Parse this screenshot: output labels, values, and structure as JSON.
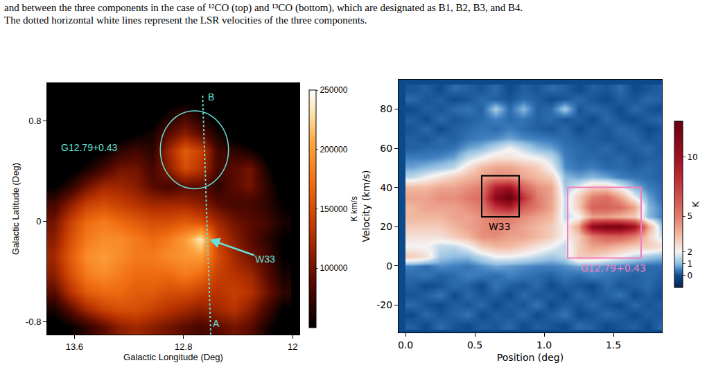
{
  "caption": {
    "lines": [
      "and between the three components in the case of ¹²CO (top) and ¹³CO (bottom), which are designated as B1, B2, B3, and B4.",
      "The dotted horizontal white lines represent the LSR velocities of the three components."
    ]
  },
  "chart_data": [
    {
      "type": "heatmap",
      "x_label": "Galactic Longitude (Deg)",
      "y_label": "Galactic Latitude (Deg)",
      "x": [
        13.75,
        13.63,
        13.51,
        13.39,
        13.27,
        13.15,
        13.03,
        12.91,
        12.79,
        12.67,
        12.55,
        12.43,
        12.31,
        12.19,
        12.07
      ],
      "y": [
        -0.84,
        -0.7,
        -0.56,
        -0.42,
        -0.28,
        -0.14,
        0,
        0.14,
        0.28,
        0.42,
        0.56,
        0.7,
        0.84,
        0.98
      ],
      "cells": [
        [
          40000,
          50000,
          70000,
          90000,
          110000,
          120000,
          110000,
          100000,
          90000,
          80000,
          90000,
          100000,
          90000,
          60000,
          40000
        ],
        [
          60000,
          90000,
          120000,
          140000,
          150000,
          150000,
          140000,
          130000,
          120000,
          110000,
          120000,
          130000,
          110000,
          80000,
          50000
        ],
        [
          90000,
          130000,
          160000,
          170000,
          170000,
          160000,
          160000,
          150000,
          150000,
          140000,
          130000,
          140000,
          130000,
          100000,
          70000
        ],
        [
          110000,
          150000,
          180000,
          190000,
          180000,
          170000,
          170000,
          170000,
          180000,
          170000,
          140000,
          130000,
          120000,
          90000,
          60000
        ],
        [
          120000,
          160000,
          190000,
          200000,
          190000,
          180000,
          180000,
          190000,
          195000,
          200000,
          150000,
          120000,
          100000,
          80000,
          50000
        ],
        [
          110000,
          150000,
          180000,
          190000,
          190000,
          180000,
          170000,
          180000,
          200000,
          235000,
          140000,
          110000,
          90000,
          70000,
          50000
        ],
        [
          100000,
          140000,
          170000,
          180000,
          170000,
          160000,
          150000,
          150000,
          160000,
          150000,
          120000,
          100000,
          90000,
          80000,
          60000
        ],
        [
          80000,
          110000,
          140000,
          150000,
          140000,
          130000,
          120000,
          120000,
          120000,
          110000,
          90000,
          80000,
          80000,
          70000,
          50000
        ],
        [
          50000,
          70000,
          100000,
          120000,
          120000,
          110000,
          90000,
          80000,
          90000,
          90000,
          70000,
          90000,
          100000,
          70000,
          40000
        ],
        [
          30000,
          40000,
          60000,
          80000,
          100000,
          100000,
          80000,
          110000,
          150000,
          130000,
          80000,
          90000,
          100000,
          60000,
          30000
        ],
        [
          20000,
          30000,
          40000,
          50000,
          70000,
          80000,
          70000,
          120000,
          160000,
          140000,
          80000,
          70000,
          60000,
          40000,
          20000
        ],
        [
          20000,
          20000,
          30000,
          30000,
          40000,
          50000,
          60000,
          90000,
          110000,
          90000,
          60000,
          40000,
          30000,
          20000,
          20000
        ],
        [
          20000,
          20000,
          20000,
          20000,
          30000,
          30000,
          40000,
          60000,
          80000,
          60000,
          40000,
          30000,
          20000,
          20000,
          20000
        ],
        [
          20000,
          20000,
          20000,
          20000,
          20000,
          20000,
          30000,
          40000,
          40000,
          30000,
          30000,
          20000,
          20000,
          20000,
          20000
        ]
      ],
      "xlim": [
        13.8,
        11.95
      ],
      "xticks": [
        13.6,
        12.8,
        12
      ],
      "ylim": [
        -0.9,
        1.1
      ],
      "yticks": [
        0.8,
        0,
        -0.8
      ],
      "colorbar": {
        "zlim": [
          50000,
          250000
        ],
        "zticks": [
          100000,
          150000,
          200000,
          250000
        ],
        "title": "K km/s"
      },
      "annotations": [
        {
          "text": "G12.79+0.43",
          "x": 13.49,
          "y": 0.59,
          "color": "#66e0d8"
        },
        {
          "text": "B",
          "x": 12.6,
          "y": 0.99,
          "color": "#66e0d8"
        },
        {
          "text": "A",
          "x": 12.56,
          "y": -0.81,
          "color": "#66e0d8"
        },
        {
          "text": "W33",
          "x": 12.62,
          "y": -0.14,
          "text_x": 12.2,
          "text_y": -0.3,
          "color": "#66e0d8"
        }
      ],
      "circle": {
        "x": [
          12.97,
          12.47
        ],
        "y": [
          0.26,
          0.88
        ],
        "color": "#66e0d8"
      },
      "dotted_line": {
        "x": [
          12.6,
          12.66
        ],
        "y": [
          -0.9,
          1.0
        ],
        "color": "#66e0d8",
        "line_style": "dot"
      }
    },
    {
      "type": "heatmap",
      "x_label": "Position (deg)",
      "y_label": "Velocity (km/s)",
      "x": [
        0.05,
        0.15,
        0.25,
        0.35,
        0.45,
        0.55,
        0.65,
        0.75,
        0.85,
        0.95,
        1.05,
        1.15,
        1.25,
        1.35,
        1.45,
        1.55,
        1.65,
        1.75,
        1.85
      ],
      "y": [
        -30,
        -25,
        -20,
        -15,
        -10,
        -5,
        0,
        5,
        10,
        15,
        20,
        25,
        30,
        35,
        40,
        45,
        50,
        55,
        60,
        65,
        70,
        75,
        80,
        85,
        90
      ],
      "cells": [
        [
          0.2,
          0,
          0.3,
          0.1,
          0,
          0.2,
          0.1,
          0.3,
          0,
          0.2,
          0.1,
          0,
          0.3,
          0.2,
          0,
          0.1,
          0.2,
          0,
          0.3
        ],
        [
          0,
          0.3,
          0.1,
          0.2,
          0.4,
          0,
          0.2,
          0.1,
          0.3,
          0,
          0.2,
          0.4,
          0,
          0.1,
          0.3,
          0.2,
          0,
          0.2,
          0.1
        ],
        [
          0.3,
          0.1,
          0,
          0.2,
          0.1,
          0.3,
          0,
          0.2,
          0.1,
          0.4,
          0,
          0.2,
          0.1,
          0.3,
          0.1,
          0,
          0.3,
          0.1,
          0.2
        ],
        [
          0.1,
          0.2,
          0.4,
          0,
          0.3,
          0.1,
          0.2,
          0,
          0.3,
          0.1,
          0.2,
          0,
          0.3,
          0.1,
          0.2,
          0.4,
          0,
          0.2,
          0
        ],
        [
          0.2,
          0,
          0.1,
          0.3,
          0.2,
          0,
          0.4,
          0.2,
          0.1,
          0.3,
          0,
          0.2,
          0.1,
          0,
          0.3,
          0.1,
          0.2,
          0.3,
          0.1
        ],
        [
          0.3,
          0.4,
          0.2,
          0.3,
          0.5,
          0.4,
          0.3,
          0.5,
          0.4,
          0.3,
          0.2,
          0.4,
          0.3,
          0.5,
          0.4,
          0.3,
          0.2,
          0.3,
          0.2
        ],
        [
          0.5,
          0.3,
          0.6,
          0.5,
          0.4,
          0.6,
          0.8,
          0.7,
          0.6,
          0.5,
          0.5,
          0.6,
          0.8,
          0.7,
          0.6,
          0.5,
          0.4,
          0.3,
          0.3
        ],
        [
          3,
          2.5,
          1.2,
          1,
          1,
          1.5,
          2,
          2,
          1.8,
          1.5,
          1.2,
          1.5,
          3,
          3,
          2.5,
          2,
          1.5,
          1.2,
          1
        ],
        [
          2,
          2,
          1.5,
          1.5,
          2,
          3,
          3.5,
          3.5,
          3,
          2.5,
          2,
          1.5,
          3,
          4,
          4,
          3.5,
          3,
          3,
          2.5
        ],
        [
          2.5,
          2.5,
          2.5,
          3,
          3.5,
          4.5,
          4.5,
          4,
          4,
          3.5,
          3,
          2,
          3,
          5,
          6,
          6,
          5,
          3,
          1.5
        ],
        [
          3,
          3,
          3,
          3.5,
          4,
          4.5,
          5,
          4.5,
          4,
          3.5,
          3,
          2,
          4,
          11,
          12,
          12,
          10,
          4,
          1
        ],
        [
          3.5,
          3.5,
          3.5,
          4,
          4,
          4.5,
          5,
          5,
          4.5,
          4,
          3.5,
          1.5,
          2,
          4,
          4,
          3.5,
          3,
          1,
          0.5
        ],
        [
          3.5,
          4,
          4,
          4,
          4.5,
          5,
          8,
          9,
          6,
          5,
          4,
          1.5,
          3,
          6,
          6,
          5.5,
          4,
          1,
          0.5
        ],
        [
          4,
          4,
          4.5,
          4.5,
          5,
          5.5,
          11,
          13,
          8,
          5,
          4,
          1.5,
          3,
          5,
          5.5,
          4,
          2,
          0.8,
          0.3
        ],
        [
          3.5,
          3.5,
          4,
          4,
          4.5,
          5,
          9,
          10,
          6,
          4.5,
          4,
          1.2,
          2,
          3,
          3,
          2,
          1,
          0.5,
          0.3
        ],
        [
          1.5,
          2,
          2.5,
          3,
          3.5,
          4,
          4.5,
          4.5,
          4,
          3.5,
          3,
          1,
          0.8,
          1,
          0.8,
          0.5,
          0.4,
          0.3,
          0.2
        ],
        [
          0.8,
          1,
          1.2,
          1.5,
          2.5,
          3.5,
          4,
          4,
          3.5,
          3,
          2,
          0.6,
          0.4,
          0.5,
          0.3,
          0.3,
          0.2,
          0.3,
          0.2
        ],
        [
          0.5,
          0.5,
          0.6,
          0.8,
          1.5,
          2,
          2.5,
          2.5,
          2.2,
          2,
          1.5,
          0.5,
          0.3,
          0.3,
          0.2,
          0.3,
          0.1,
          0.2,
          0.2
        ],
        [
          0.2,
          0.3,
          0.3,
          0.4,
          0.8,
          1,
          1.5,
          2,
          1.5,
          1,
          0.8,
          0.4,
          0.3,
          0.2,
          0.3,
          0.1,
          0.2,
          0.3,
          0.1
        ],
        [
          0.2,
          0.1,
          0.3,
          0.2,
          0.4,
          0.5,
          0.6,
          0.8,
          0.6,
          0.5,
          0.4,
          0.3,
          0.2,
          0.2,
          0.1,
          0.2,
          0.3,
          0.1,
          0.2
        ],
        [
          0.1,
          0.3,
          0,
          0.2,
          0.3,
          0.4,
          0.3,
          0.5,
          0.3,
          0.2,
          0.1,
          0.3,
          0,
          0.2,
          0.1,
          0.3,
          0.2,
          0,
          0.1
        ],
        [
          0.2,
          0,
          0.3,
          0.1,
          0.2,
          0.3,
          0.5,
          0.3,
          0.4,
          0.2,
          0.3,
          0.1,
          0.2,
          0,
          0.3,
          0.1,
          0,
          0.2,
          0.3
        ],
        [
          0,
          0.2,
          0.1,
          0.3,
          0.4,
          0.2,
          1.2,
          0.3,
          1,
          0.2,
          0.3,
          1.2,
          0.1,
          0.3,
          0.2,
          0,
          0.3,
          0.1,
          0
        ],
        [
          0.3,
          0.1,
          0.2,
          0,
          0.1,
          0.3,
          0.2,
          0.1,
          0.3,
          0.2,
          0,
          0.1,
          0.3,
          0.1,
          0,
          0.2,
          0.1,
          0.3,
          0.2
        ],
        [
          0.1,
          0.2,
          0,
          0.3,
          0.2,
          0.1,
          0.3,
          0,
          0.2,
          0.1,
          0.3,
          0.2,
          0,
          0.2,
          0.1,
          0.3,
          0,
          0.1,
          0.2
        ]
      ],
      "xlim": [
        -0.05,
        1.85
      ],
      "xticks": [
        {
          "value": 0,
          "label": "0.0"
        },
        {
          "value": 0.5,
          "label": "0.5"
        },
        {
          "value": 1,
          "label": "1.0"
        },
        {
          "value": 1.5,
          "label": "1.5"
        }
      ],
      "ylim": [
        -34,
        95
      ],
      "yticks": [
        -20,
        0,
        20,
        40,
        60,
        80
      ],
      "colorbar": {
        "zlim": [
          -1,
          13
        ],
        "zticks": [
          0,
          1,
          2,
          5,
          10
        ],
        "title": "K"
      },
      "boxes": [
        {
          "label": "W33",
          "x": [
            0.55,
            0.82
          ],
          "y": [
            25,
            46
          ],
          "label_x": 0.68,
          "label_y": 20,
          "color": "#000000"
        },
        {
          "label": "G12.79+0.43",
          "x": [
            1.17,
            1.7
          ],
          "y": [
            4,
            40
          ],
          "label_x": 1.5,
          "label_y": -1,
          "color": "#f27fbf"
        }
      ]
    }
  ]
}
